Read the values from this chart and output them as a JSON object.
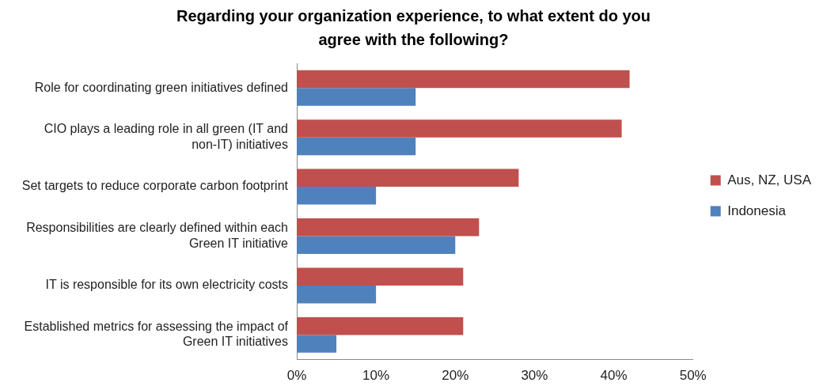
{
  "chart_data": {
    "type": "bar",
    "orientation": "horizontal",
    "title": "Regarding your organization experience, to what extent do you agree with the following?",
    "categories": [
      "Role for coordinating green initiatives defined",
      "CIO plays a leading role in all green (IT and non-IT) initiatives",
      "Set targets to reduce corporate carbon footprint",
      "Responsibilities are clearly defined within each Green IT initiative",
      "IT is responsible for its own electricity costs",
      "Established metrics for assessing the impact of Green IT initiatives"
    ],
    "series": [
      {
        "name": "Aus, NZ, USA",
        "color": "#c0504d",
        "values": [
          42,
          41,
          28,
          23,
          21,
          21
        ]
      },
      {
        "name": "Indonesia",
        "color": "#4f81bd",
        "values": [
          15,
          15,
          10,
          20,
          10,
          5
        ]
      }
    ],
    "xlim": [
      0,
      50
    ],
    "xticks": [
      {
        "value": 0,
        "label": "0%"
      },
      {
        "value": 10,
        "label": "10%"
      },
      {
        "value": 20,
        "label": "20%"
      },
      {
        "value": 30,
        "label": "30%"
      },
      {
        "value": 40,
        "label": "40%"
      },
      {
        "value": 50,
        "label": "50%"
      }
    ],
    "grid": false,
    "legend": "right"
  }
}
